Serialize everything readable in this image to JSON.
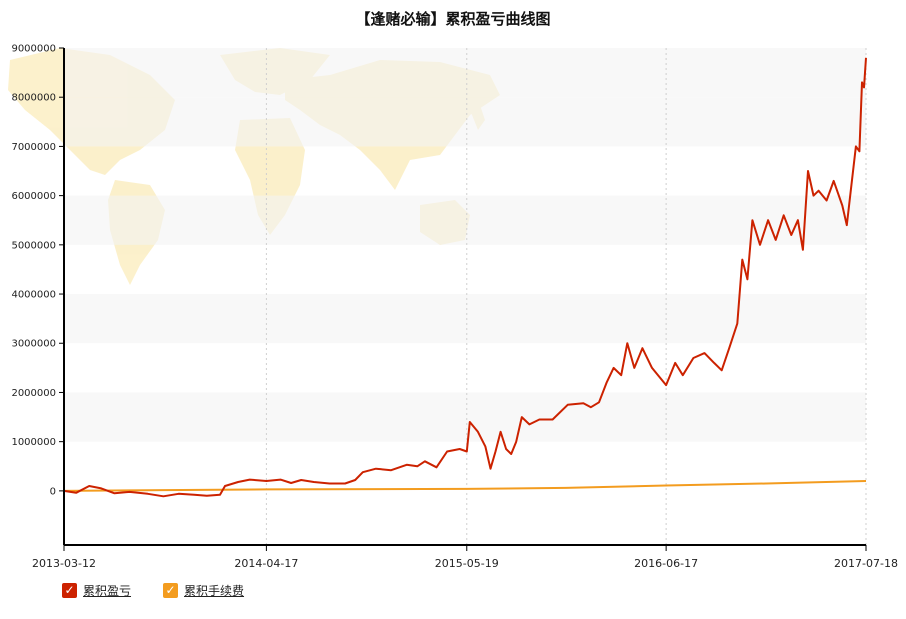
{
  "chart_data": {
    "type": "line",
    "title": "【逢赌必输】累积盈亏曲线图",
    "x_ticks": [
      "2013-03-12",
      "2014-04-17",
      "2015-05-19",
      "2016-06-17",
      "2017-07-18"
    ],
    "y_ticks": [
      "0",
      "1000000",
      "2000000",
      "3000000",
      "4000000",
      "5000000",
      "6000000",
      "7000000",
      "8000000",
      "9000000"
    ],
    "ylim": [
      -1100000,
      9000000
    ],
    "grid": "vertical dashed at x ticks; horizontal alternating bands",
    "legend_position": "bottom-left",
    "series": [
      {
        "name": "累积盈亏",
        "color": "#cc2200",
        "points": [
          [
            "2013-03-12",
            0
          ],
          [
            "2013-04-05",
            -40000
          ],
          [
            "2013-05-01",
            100000
          ],
          [
            "2013-05-25",
            50000
          ],
          [
            "2013-06-20",
            -50000
          ],
          [
            "2013-07-20",
            -20000
          ],
          [
            "2013-08-25",
            -60000
          ],
          [
            "2013-09-25",
            -110000
          ],
          [
            "2013-10-25",
            -60000
          ],
          [
            "2013-11-25",
            -80000
          ],
          [
            "2013-12-20",
            -100000
          ],
          [
            "2014-01-15",
            -80000
          ],
          [
            "2014-01-25",
            100000
          ],
          [
            "2014-02-20",
            180000
          ],
          [
            "2014-03-15",
            230000
          ],
          [
            "2014-04-17",
            200000
          ],
          [
            "2014-05-15",
            230000
          ],
          [
            "2014-06-05",
            160000
          ],
          [
            "2014-06-25",
            220000
          ],
          [
            "2014-07-20",
            180000
          ],
          [
            "2014-08-20",
            150000
          ],
          [
            "2014-09-20",
            150000
          ],
          [
            "2014-10-10",
            220000
          ],
          [
            "2014-10-25",
            380000
          ],
          [
            "2014-11-20",
            450000
          ],
          [
            "2014-12-20",
            420000
          ],
          [
            "2015-01-20",
            530000
          ],
          [
            "2015-02-10",
            500000
          ],
          [
            "2015-02-25",
            600000
          ],
          [
            "2015-03-20",
            480000
          ],
          [
            "2015-04-10",
            800000
          ],
          [
            "2015-05-05",
            850000
          ],
          [
            "2015-05-19",
            800000
          ],
          [
            "2015-05-25",
            1400000
          ],
          [
            "2015-06-10",
            1200000
          ],
          [
            "2015-06-25",
            900000
          ],
          [
            "2015-07-05",
            450000
          ],
          [
            "2015-07-15",
            800000
          ],
          [
            "2015-07-25",
            1200000
          ],
          [
            "2015-08-05",
            850000
          ],
          [
            "2015-08-15",
            750000
          ],
          [
            "2015-08-25",
            1000000
          ],
          [
            "2015-09-05",
            1500000
          ],
          [
            "2015-09-20",
            1350000
          ],
          [
            "2015-10-10",
            1450000
          ],
          [
            "2015-11-05",
            1450000
          ],
          [
            "2015-12-05",
            1750000
          ],
          [
            "2016-01-05",
            1780000
          ],
          [
            "2016-01-20",
            1700000
          ],
          [
            "2016-02-05",
            1800000
          ],
          [
            "2016-02-20",
            2200000
          ],
          [
            "2016-03-05",
            2500000
          ],
          [
            "2016-03-20",
            2350000
          ],
          [
            "2016-04-01",
            3000000
          ],
          [
            "2016-04-15",
            2500000
          ],
          [
            "2016-05-01",
            2900000
          ],
          [
            "2016-05-20",
            2500000
          ],
          [
            "2016-06-17",
            2150000
          ],
          [
            "2016-07-05",
            2600000
          ],
          [
            "2016-07-20",
            2350000
          ],
          [
            "2016-08-10",
            2700000
          ],
          [
            "2016-09-01",
            2800000
          ],
          [
            "2016-09-20",
            2600000
          ],
          [
            "2016-10-05",
            2450000
          ],
          [
            "2016-10-20",
            2900000
          ],
          [
            "2016-11-05",
            3400000
          ],
          [
            "2016-11-15",
            4700000
          ],
          [
            "2016-11-25",
            4300000
          ],
          [
            "2016-12-05",
            5500000
          ],
          [
            "2016-12-20",
            5000000
          ],
          [
            "2017-01-05",
            5500000
          ],
          [
            "2017-01-20",
            5100000
          ],
          [
            "2017-02-05",
            5600000
          ],
          [
            "2017-02-20",
            5200000
          ],
          [
            "2017-03-05",
            5500000
          ],
          [
            "2017-03-15",
            4900000
          ],
          [
            "2017-03-25",
            6500000
          ],
          [
            "2017-04-05",
            6000000
          ],
          [
            "2017-04-15",
            6100000
          ],
          [
            "2017-05-01",
            5900000
          ],
          [
            "2017-05-15",
            6300000
          ],
          [
            "2017-06-01",
            5800000
          ],
          [
            "2017-06-10",
            5400000
          ],
          [
            "2017-06-20",
            6300000
          ],
          [
            "2017-06-28",
            7000000
          ],
          [
            "2017-07-05",
            6900000
          ],
          [
            "2017-07-10",
            8300000
          ],
          [
            "2017-07-14",
            8200000
          ],
          [
            "2017-07-18",
            8800000
          ]
        ]
      },
      {
        "name": "累积手续费",
        "color": "#f39c1f",
        "points": [
          [
            "2013-03-12",
            0
          ],
          [
            "2014-04-17",
            30000
          ],
          [
            "2015-05-19",
            40000
          ],
          [
            "2015-12-01",
            60000
          ],
          [
            "2016-06-17",
            110000
          ],
          [
            "2017-01-01",
            150000
          ],
          [
            "2017-07-18",
            200000
          ]
        ]
      }
    ]
  }
}
